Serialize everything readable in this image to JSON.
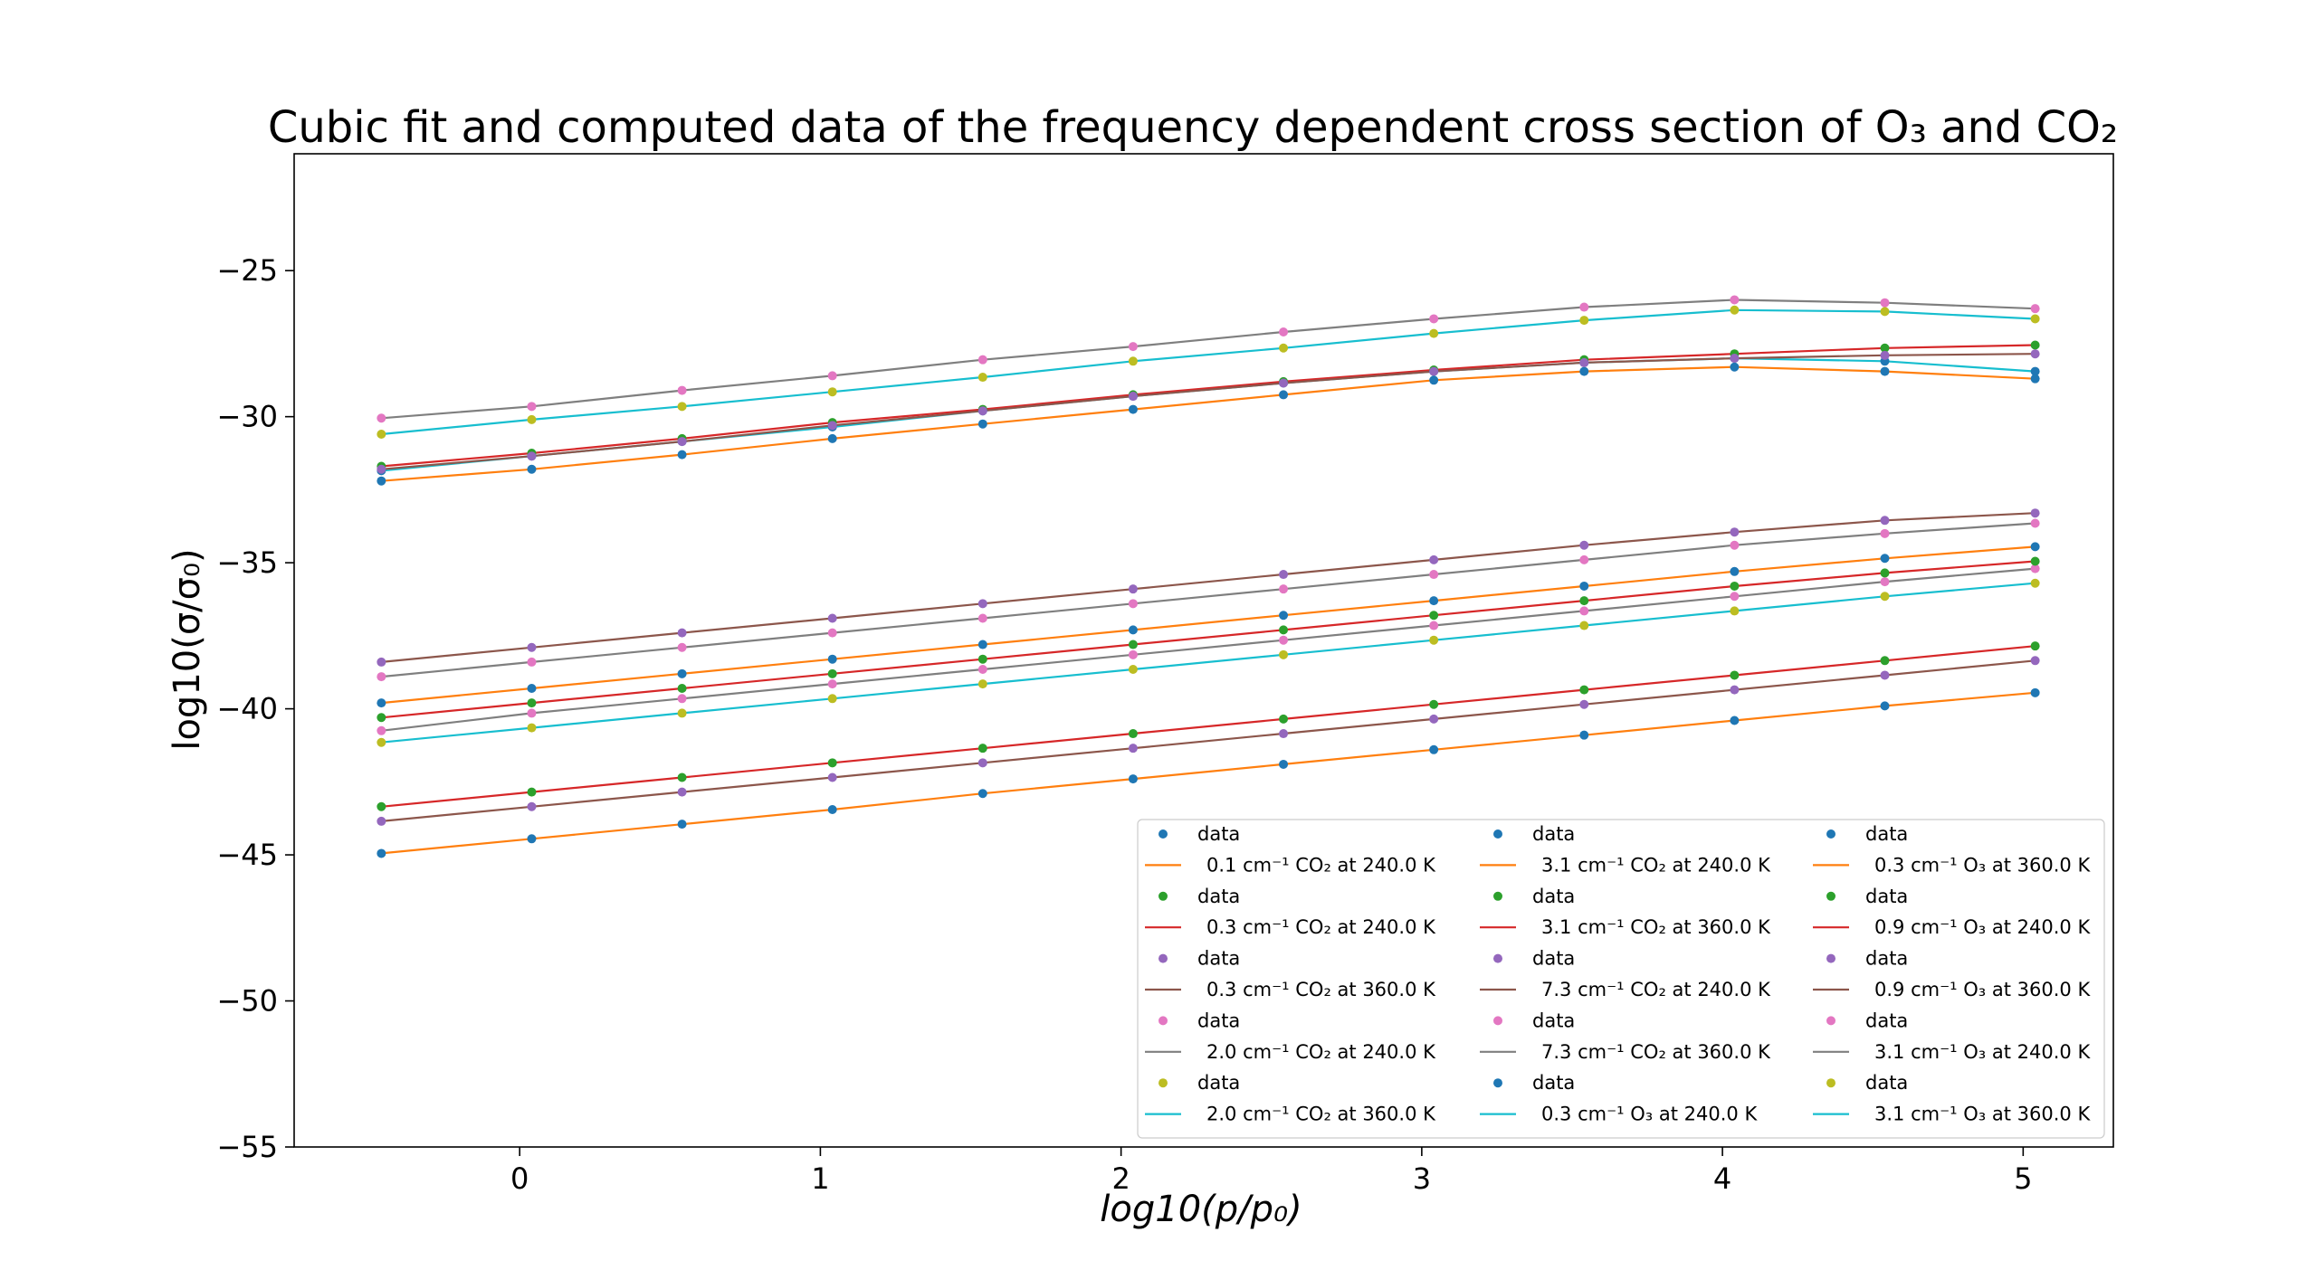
{
  "chart_data": {
    "type": "line",
    "title": "Cubic fit and computed data of the frequency dependent cross section of O₃ and CO₂",
    "xlabel": "log10(p/p₀)",
    "ylabel": "log10(σ/σ₀)",
    "xlim": [
      -0.75,
      5.3
    ],
    "ylim": [
      -55,
      -21
    ],
    "xticks": [
      0,
      1,
      2,
      3,
      4,
      5
    ],
    "yticks": [
      -55,
      -50,
      -45,
      -40,
      -35,
      -30,
      -25
    ],
    "xtick_labels": [
      "0",
      "1",
      "2",
      "3",
      "4",
      "5"
    ],
    "ytick_labels": [
      "−55",
      "−50",
      "−45",
      "−40",
      "−35",
      "−30",
      "−25"
    ],
    "grid": false,
    "legend_position": "lower-right",
    "legend_columns": 3,
    "data_label": "data",
    "x": [
      -0.46,
      0.04,
      0.54,
      1.04,
      1.54,
      2.04,
      2.54,
      3.04,
      3.54,
      4.04,
      4.54,
      5.04
    ],
    "series": [
      {
        "name": "0.1 cm⁻¹ CO₂ at 240.0 K",
        "marker_color": "#1f77b4",
        "line_color": "#ff7f0e",
        "values": [
          -44.95,
          -44.45,
          -43.95,
          -43.45,
          -42.9,
          -42.4,
          -41.9,
          -41.4,
          -40.9,
          -40.4,
          -39.9,
          -39.45
        ]
      },
      {
        "name": "0.3 cm⁻¹ CO₂ at 240.0 K",
        "marker_color": "#2ca02c",
        "line_color": "#d62728",
        "values": [
          -43.35,
          -42.85,
          -42.35,
          -41.85,
          -41.35,
          -40.85,
          -40.35,
          -39.85,
          -39.35,
          -38.85,
          -38.35,
          -37.85
        ]
      },
      {
        "name": "0.3 cm⁻¹ CO₂ at 360.0 K",
        "marker_color": "#9467bd",
        "line_color": "#8c564b",
        "values": [
          -43.85,
          -43.35,
          -42.85,
          -42.35,
          -41.85,
          -41.35,
          -40.85,
          -40.35,
          -39.85,
          -39.35,
          -38.85,
          -38.35
        ]
      },
      {
        "name": "2.0 cm⁻¹ CO₂ at 240.0 K",
        "marker_color": "#e377c2",
        "line_color": "#7f7f7f",
        "values": [
          -40.75,
          -40.15,
          -39.65,
          -39.15,
          -38.65,
          -38.15,
          -37.65,
          -37.15,
          -36.65,
          -36.15,
          -35.65,
          -35.2
        ]
      },
      {
        "name": "2.0 cm⁻¹ CO₂ at 360.0 K",
        "marker_color": "#bcbd22",
        "line_color": "#17becf",
        "values": [
          -41.15,
          -40.65,
          -40.15,
          -39.65,
          -39.15,
          -38.65,
          -38.15,
          -37.65,
          -37.15,
          -36.65,
          -36.15,
          -35.7
        ]
      },
      {
        "name": "3.1 cm⁻¹ CO₂ at 240.0 K",
        "marker_color": "#1f77b4",
        "line_color": "#ff7f0e",
        "values": [
          -39.8,
          -39.3,
          -38.8,
          -38.3,
          -37.8,
          -37.3,
          -36.8,
          -36.3,
          -35.8,
          -35.3,
          -34.85,
          -34.45
        ]
      },
      {
        "name": "3.1 cm⁻¹ CO₂ at 360.0 K",
        "marker_color": "#2ca02c",
        "line_color": "#d62728",
        "values": [
          -40.3,
          -39.8,
          -39.3,
          -38.8,
          -38.3,
          -37.8,
          -37.3,
          -36.8,
          -36.3,
          -35.8,
          -35.35,
          -34.95
        ]
      },
      {
        "name": "7.3 cm⁻¹ CO₂ at 240.0 K",
        "marker_color": "#9467bd",
        "line_color": "#8c564b",
        "values": [
          -38.4,
          -37.9,
          -37.4,
          -36.9,
          -36.4,
          -35.9,
          -35.4,
          -34.9,
          -34.4,
          -33.95,
          -33.55,
          -33.3
        ]
      },
      {
        "name": "7.3 cm⁻¹ CO₂ at 360.0 K",
        "marker_color": "#e377c2",
        "line_color": "#7f7f7f",
        "values": [
          -38.9,
          -38.4,
          -37.9,
          -37.4,
          -36.9,
          -36.4,
          -35.9,
          -35.4,
          -34.9,
          -34.4,
          -34.0,
          -33.65
        ]
      },
      {
        "name": "0.3 cm⁻¹ O₃ at 240.0 K",
        "marker_color": "#1f77b4",
        "line_color": "#17becf",
        "values": [
          -31.85,
          -31.35,
          -30.85,
          -30.35,
          -29.8,
          -29.3,
          -28.85,
          -28.45,
          -28.15,
          -28.0,
          -28.1,
          -28.45
        ]
      },
      {
        "name": "0.3 cm⁻¹ O₃ at 360.0 K",
        "marker_color": "#1f77b4",
        "line_color": "#ff7f0e",
        "values": [
          -32.2,
          -31.8,
          -31.3,
          -30.75,
          -30.25,
          -29.75,
          -29.25,
          -28.75,
          -28.45,
          -28.3,
          -28.45,
          -28.7
        ]
      },
      {
        "name": "0.9 cm⁻¹ O₃ at 240.0 K",
        "marker_color": "#2ca02c",
        "line_color": "#d62728",
        "values": [
          -31.7,
          -31.25,
          -30.75,
          -30.2,
          -29.75,
          -29.25,
          -28.8,
          -28.4,
          -28.05,
          -27.85,
          -27.65,
          -27.55
        ]
      },
      {
        "name": "0.9 cm⁻¹ O₃ at 360.0 K",
        "marker_color": "#9467bd",
        "line_color": "#8c564b",
        "values": [
          -31.8,
          -31.35,
          -30.85,
          -30.3,
          -29.8,
          -29.3,
          -28.85,
          -28.45,
          -28.15,
          -28.0,
          -27.9,
          -27.85
        ]
      },
      {
        "name": "3.1 cm⁻¹ O₃ at 240.0 K",
        "marker_color": "#e377c2",
        "line_color": "#7f7f7f",
        "values": [
          -30.05,
          -29.65,
          -29.1,
          -28.6,
          -28.05,
          -27.6,
          -27.1,
          -26.65,
          -26.25,
          -26.0,
          -26.1,
          -26.3
        ]
      },
      {
        "name": "3.1 cm⁻¹ O₃ at 360.0 K",
        "marker_color": "#bcbd22",
        "line_color": "#17becf",
        "values": [
          -30.6,
          -30.1,
          -29.65,
          -29.15,
          -28.65,
          -28.1,
          -27.65,
          -27.15,
          -26.7,
          -26.35,
          -26.4,
          -26.65
        ]
      }
    ]
  }
}
